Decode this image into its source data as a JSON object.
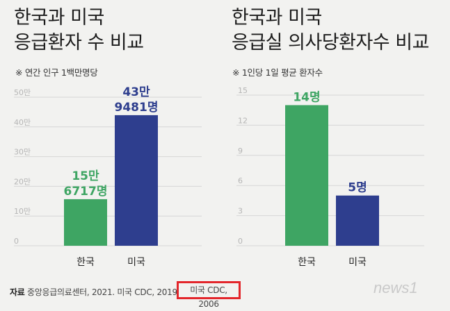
{
  "titles": {
    "left_line1": "한국과 미국",
    "left_line2": "응급환자 수 비교",
    "right_line1": "한국과 미국",
    "right_line2": "응급실 의사당환자수 비교"
  },
  "notes": {
    "left": "※ 연간 인구 1백만명당",
    "right": "※ 1인당 1일 평균 환자수"
  },
  "colors": {
    "korea": "#3ea563",
    "usa": "#2e3e8e",
    "gridline": "#d6d6d6"
  },
  "chart_data": [
    {
      "type": "bar",
      "title": "한국과 미국 응급환자 수 비교",
      "categories": [
        "한국",
        "미국"
      ],
      "values": [
        156717,
        439481
      ],
      "data_labels": [
        [
          "15만",
          "6717명"
        ],
        [
          "43만",
          "9481명"
        ]
      ],
      "yticks": [
        0,
        100000,
        200000,
        300000,
        400000,
        500000
      ],
      "ytick_labels": [
        "0",
        "10만",
        "20만",
        "30만",
        "40만",
        "50만"
      ],
      "ylim": [
        0,
        500000
      ],
      "grid": true
    },
    {
      "type": "bar",
      "title": "한국과 미국 응급실 의사당환자수 비교",
      "categories": [
        "한국",
        "미국"
      ],
      "values": [
        14,
        5
      ],
      "data_labels": [
        [
          "14명"
        ],
        [
          "5명"
        ]
      ],
      "yticks": [
        0,
        3,
        6,
        9,
        12,
        15
      ],
      "ytick_labels": [
        "0",
        "3",
        "6",
        "9",
        "12",
        "15"
      ],
      "ylim": [
        0,
        15
      ],
      "grid": true
    }
  ],
  "source": {
    "label": "자료",
    "text": "중앙응급의료센터, 2021. 미국 CDC, 2019",
    "highlighted": "미국 CDC, 2006"
  },
  "logo": {
    "text": "news1"
  }
}
